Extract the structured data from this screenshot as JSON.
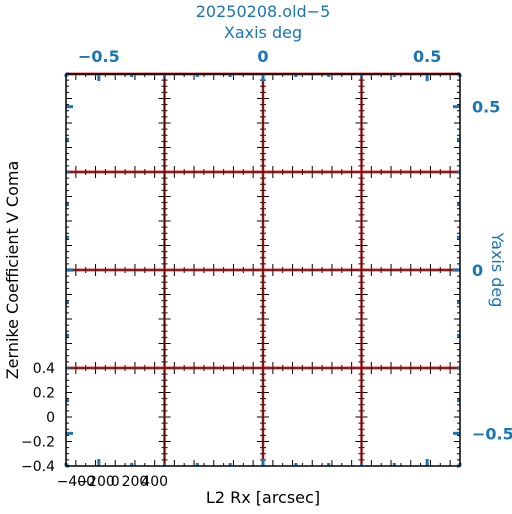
{
  "figure": {
    "title": "20250208.old−5",
    "top_axis_label": "Xaxis deg",
    "right_axis_label": "Yaxis deg",
    "bottom_axis_label": "L2 Rx [arcsec]",
    "left_axis_label": "Zernike Coefficient V Coma",
    "accent_color": "#1a74b8",
    "line_color": "#5a0000",
    "line_halo_color": "#e02020"
  },
  "chart_data": {
    "type": "line",
    "title": "20250208.old−5",
    "grid": "4x4 small-multiple panels",
    "outer_axes": {
      "top": {
        "label": "Xaxis deg",
        "ticks": [
          -0.5,
          0,
          0.5
        ],
        "tick_labels": [
          "−0.5",
          "0",
          "0.5"
        ],
        "range": [
          -0.6,
          0.6
        ]
      },
      "right": {
        "label": "Yaxis deg",
        "ticks": [
          0.5,
          0,
          -0.5
        ],
        "tick_labels": [
          "0.5",
          "0",
          "−0.5"
        ],
        "range": [
          -0.6,
          0.6
        ]
      }
    },
    "panel_axes": {
      "x": {
        "label": "L2 Rx [arcsec]",
        "ticks": [
          -400,
          -200,
          0,
          200,
          400
        ],
        "tick_labels": [
          "−400",
          "−200",
          "0",
          "200",
          "400"
        ],
        "range": [
          -500,
          500
        ]
      },
      "y": {
        "label": "Zernike Coefficient V Coma",
        "ticks": [
          0.4,
          0.2,
          0,
          -0.2,
          -0.4
        ],
        "tick_labels": [
          "0.4",
          "0.2",
          "0",
          "−0.2",
          "−0.4"
        ],
        "range": [
          -0.4,
          0.4
        ]
      }
    },
    "series": [
      {
        "values": [
          0.4,
          0.4,
          0.4,
          0.4,
          0.4
        ]
      }
    ]
  }
}
